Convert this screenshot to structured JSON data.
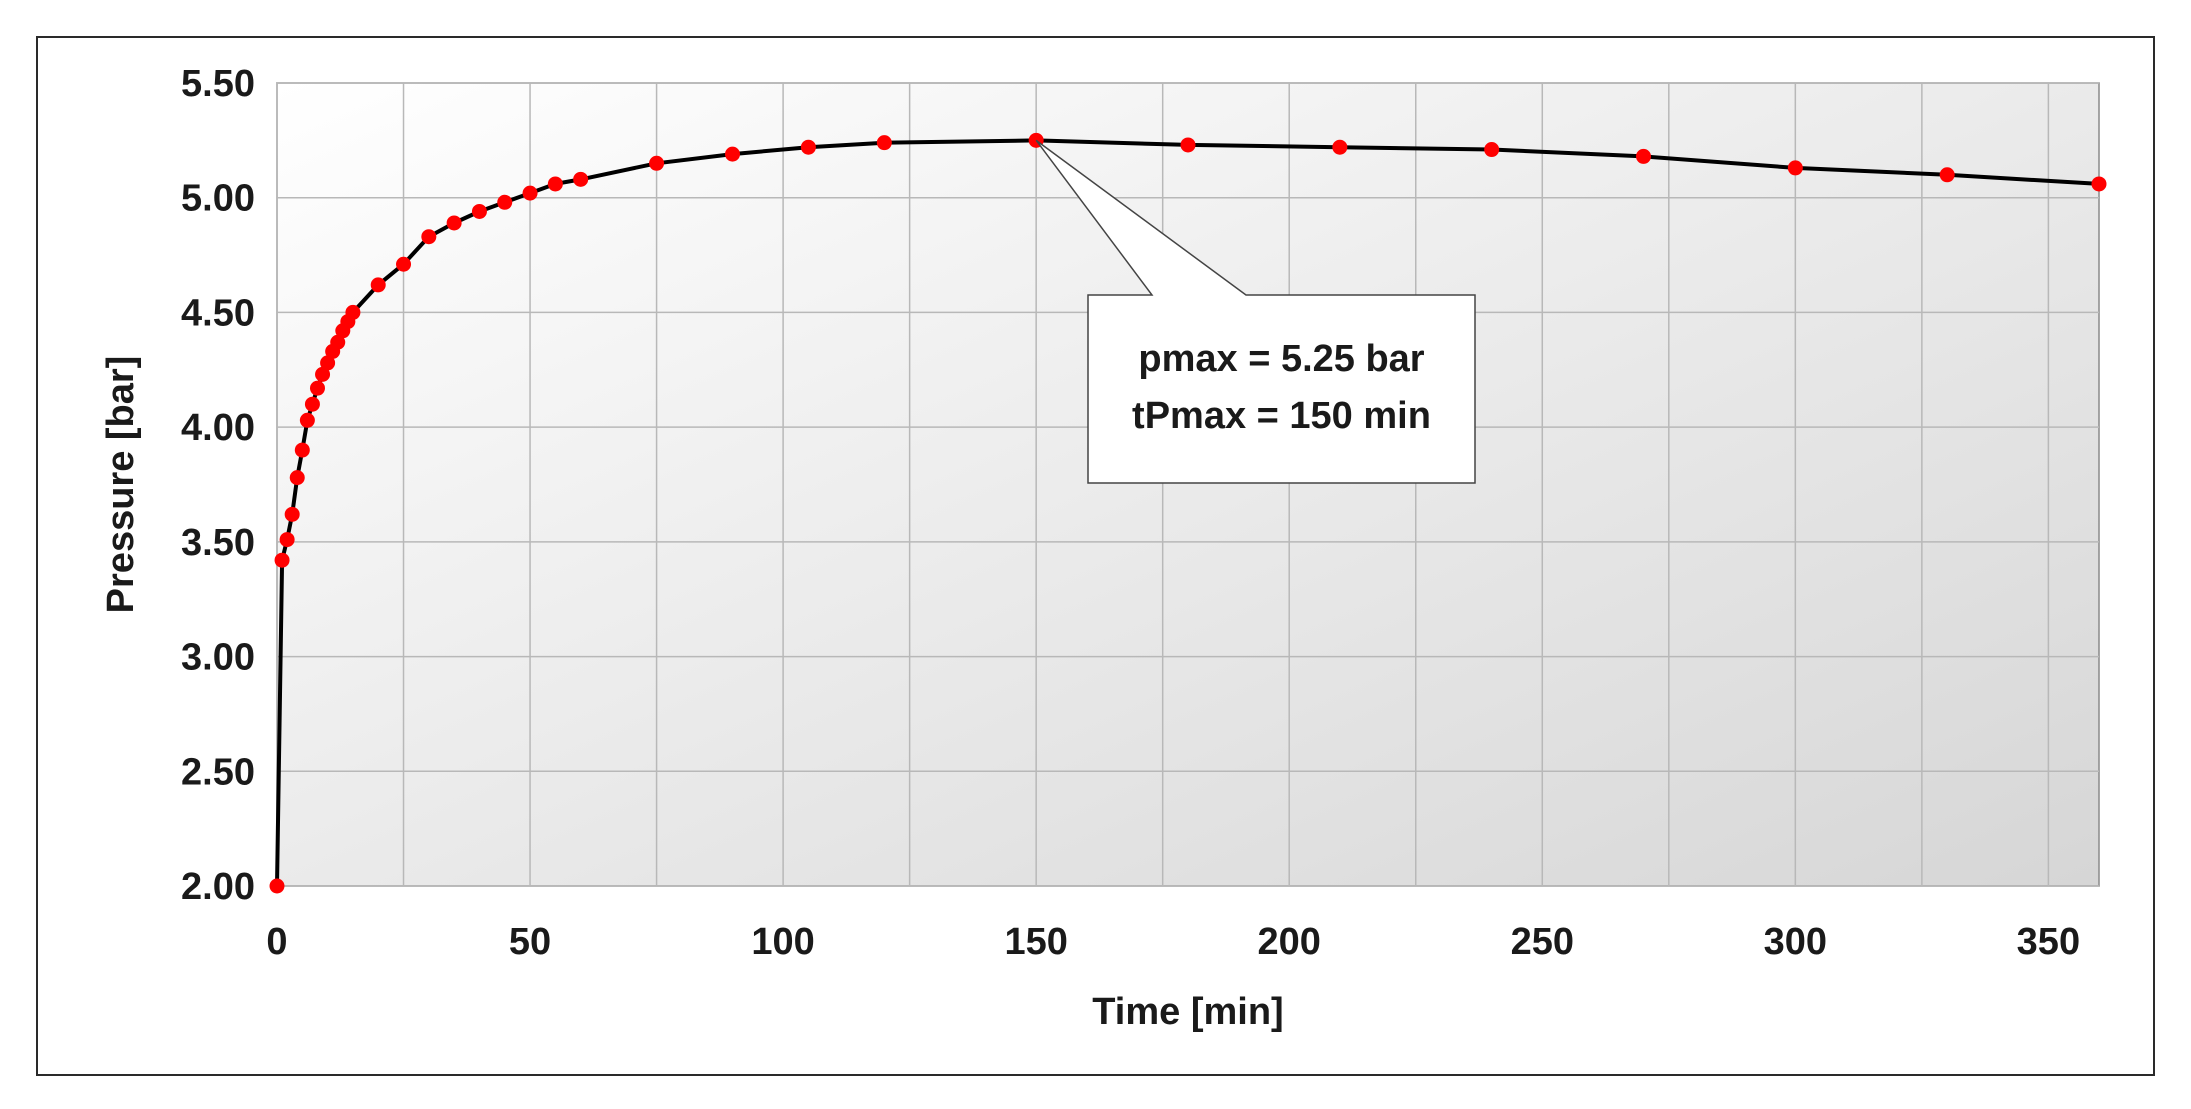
{
  "chart_data": {
    "type": "line",
    "title": "",
    "xlabel": "Time [min]",
    "ylabel": "Pressure [bar]",
    "xlim": [
      0,
      360
    ],
    "ylim": [
      2.0,
      5.5
    ],
    "x_ticks": [
      0,
      50,
      100,
      150,
      200,
      250,
      300,
      350
    ],
    "x_tick_labels": [
      "0",
      "50",
      "100",
      "150",
      "200",
      "250",
      "300",
      "350"
    ],
    "y_ticks": [
      2.0,
      2.5,
      3.0,
      3.5,
      4.0,
      4.5,
      5.0,
      5.5
    ],
    "y_tick_labels": [
      "2.00",
      "2.50",
      "3.00",
      "3.50",
      "4.00",
      "4.50",
      "5.00",
      "5.50"
    ],
    "grid": true,
    "series": [
      {
        "line_color": "#000000",
        "marker_color": "#ff0000",
        "x": [
          0,
          1,
          2,
          3,
          4,
          5,
          6,
          7,
          8,
          9,
          10,
          11,
          12,
          13,
          14,
          15,
          20,
          25,
          30,
          35,
          40,
          45,
          50,
          55,
          60,
          75,
          90,
          105,
          120,
          150,
          180,
          210,
          240,
          270,
          300,
          330,
          360
        ],
        "y": [
          2.0,
          3.42,
          3.51,
          3.62,
          3.78,
          3.9,
          4.03,
          4.1,
          4.17,
          4.23,
          4.28,
          4.33,
          4.37,
          4.42,
          4.46,
          4.5,
          4.62,
          4.71,
          4.83,
          4.89,
          4.94,
          4.98,
          5.02,
          5.06,
          5.08,
          5.15,
          5.19,
          5.22,
          5.24,
          5.25,
          5.23,
          5.22,
          5.21,
          5.18,
          5.13,
          5.1,
          5.06
        ]
      }
    ],
    "annotation": {
      "lines": [
        "pmax = 5.25 bar",
        "tPmax = 150 min"
      ],
      "x": 150,
      "y": 5.25
    }
  }
}
